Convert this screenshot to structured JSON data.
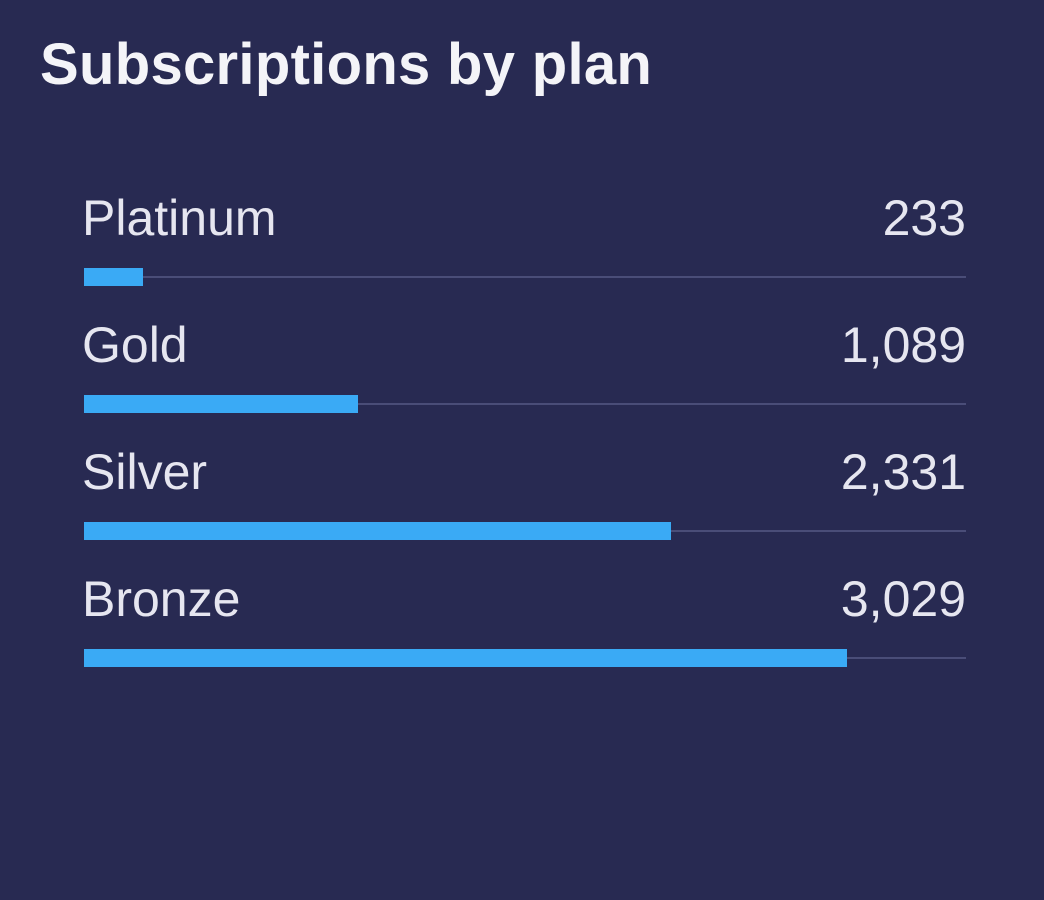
{
  "chart_data": {
    "type": "bar",
    "orientation": "horizontal",
    "title": "Subscriptions by plan",
    "categories": [
      "Platinum",
      "Gold",
      "Silver",
      "Bronze"
    ],
    "values": [
      233,
      1089,
      2331,
      3029
    ],
    "value_labels": [
      "233",
      "1,089",
      "2,331",
      "3,029"
    ],
    "xlim": [
      0,
      3500
    ],
    "grid": false,
    "legend": "none"
  },
  "colors": {
    "background": "#282a52",
    "bar": "#3aaaf5",
    "track": "#4a4d78",
    "text": "#e6e6f0"
  }
}
